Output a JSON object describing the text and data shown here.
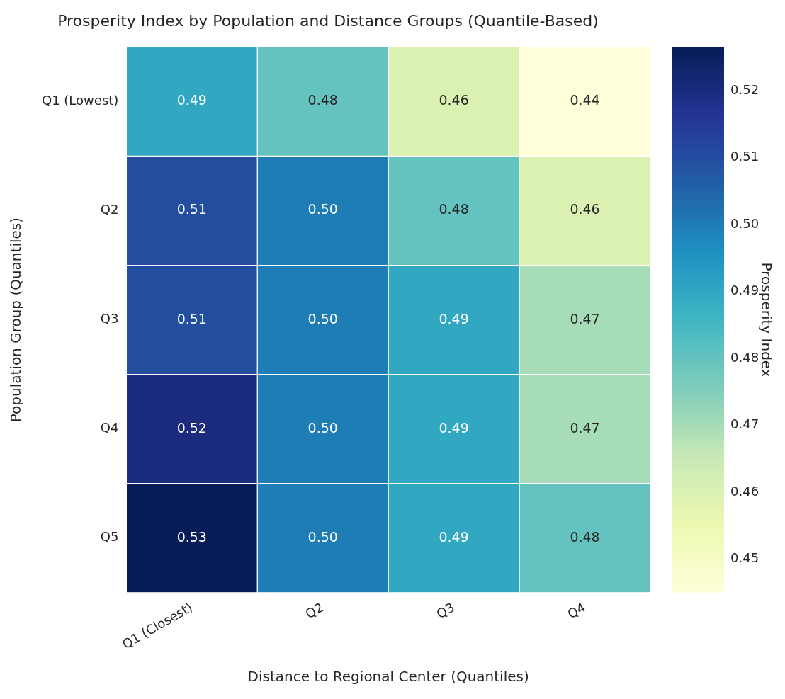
{
  "chart_data": {
    "type": "heatmap",
    "title": "Prosperity Index by Population and Distance Groups (Quantile-Based)",
    "xlabel": "Distance to Regional Center (Quantiles)",
    "ylabel": "Population Group (Quantiles)",
    "clabel": "Prosperity Index",
    "categories": [
      "Q1 (Closest)",
      "Q2",
      "Q3",
      "Q4"
    ],
    "y_categories": [
      "Q1 (Lowest)",
      "Q2",
      "Q3",
      "Q4",
      "Q5"
    ],
    "cells": [
      [
        0.49,
        0.48,
        0.46,
        0.44
      ],
      [
        0.51,
        0.5,
        0.48,
        0.46
      ],
      [
        0.51,
        0.5,
        0.49,
        0.47
      ],
      [
        0.52,
        0.5,
        0.49,
        0.47
      ],
      [
        0.53,
        0.5,
        0.49,
        0.48
      ]
    ],
    "cell_labels": [
      [
        "0.49",
        "0.48",
        "0.46",
        "0.44"
      ],
      [
        "0.51",
        "0.50",
        "0.48",
        "0.46"
      ],
      [
        "0.51",
        "0.50",
        "0.49",
        "0.47"
      ],
      [
        "0.52",
        "0.50",
        "0.49",
        "0.47"
      ],
      [
        "0.53",
        "0.50",
        "0.49",
        "0.48"
      ]
    ],
    "clim": [
      0.445,
      0.5265
    ],
    "cticks": [
      0.45,
      0.46,
      0.47,
      0.48,
      0.49,
      {
        "value": 0.5,
        "label": "0.50"
      },
      0.51,
      0.52
    ]
  }
}
